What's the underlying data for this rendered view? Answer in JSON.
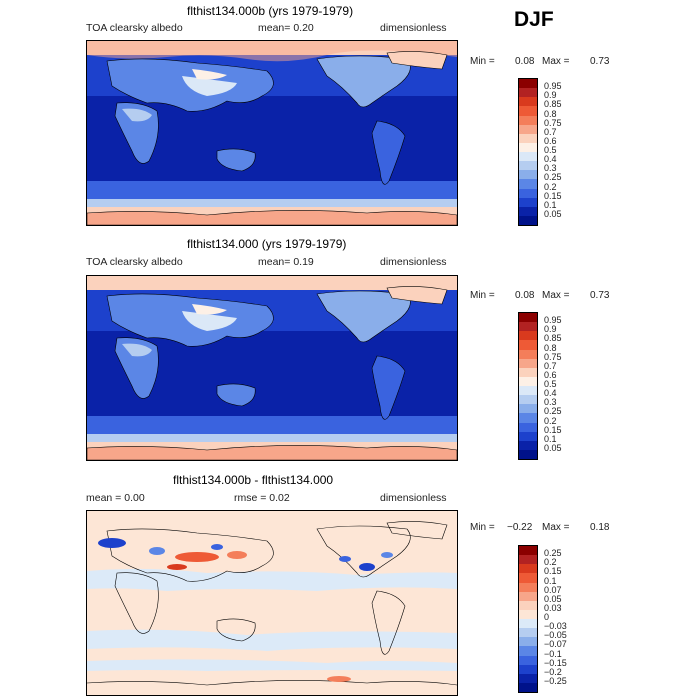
{
  "season": "DJF",
  "panels": [
    {
      "title": "flthist134.000b (yrs 1979-1979)",
      "left_label": "TOA clearsky albedo",
      "mean_text": "mean=   0.20",
      "units": "dimensionless",
      "min_label": "Min =",
      "min_value": "0.08",
      "max_label": "Max =",
      "max_value": "0.73",
      "colorbar_labels": [
        "0.95",
        "0.9",
        "0.85",
        "0.8",
        "0.75",
        "0.7",
        "0.6",
        "0.5",
        "0.4",
        "0.3",
        "0.25",
        "0.2",
        "0.15",
        "0.1",
        "0.05"
      ]
    },
    {
      "title": "flthist134.000 (yrs 1979-1979)",
      "left_label": "TOA clearsky albedo",
      "mean_text": "mean=   0.19",
      "units": "dimensionless",
      "min_label": "Min =",
      "min_value": "0.08",
      "max_label": "Max =",
      "max_value": "0.73",
      "colorbar_labels": [
        "0.95",
        "0.9",
        "0.85",
        "0.8",
        "0.75",
        "0.7",
        "0.6",
        "0.5",
        "0.4",
        "0.3",
        "0.25",
        "0.2",
        "0.15",
        "0.1",
        "0.05"
      ]
    },
    {
      "title": "flthist134.000b - flthist134.000",
      "left_label": "mean =    0.00",
      "mean_text": "rmse =   0.02",
      "units": "dimensionless",
      "min_label": "Min =",
      "min_value": "−0.22",
      "max_label": "Max =",
      "max_value": "0.18",
      "colorbar_labels": [
        "0.25",
        "0.2",
        "0.15",
        "0.1",
        "0.07",
        "0.05",
        "0.03",
        "0",
        "−0.03",
        "−0.05",
        "−0.07",
        "−0.1",
        "−0.15",
        "−0.2",
        "−0.25"
      ]
    }
  ],
  "colors": {
    "albedo_scale": [
      "#8b0000",
      "#b22222",
      "#d93a1e",
      "#ee5a36",
      "#f47e5a",
      "#f7a68a",
      "#fbd2bd",
      "#fdf0e6",
      "#dbe8f7",
      "#b5cdf0",
      "#8aaeea",
      "#5b86e6",
      "#3a63df",
      "#1d41cc",
      "#0a22a8",
      "#00128a"
    ],
    "diff_scale": [
      "#8b0000",
      "#b22222",
      "#d93a1e",
      "#ee5a36",
      "#f47e5a",
      "#f7a68a",
      "#fbd2bd",
      "#fde6d6",
      "#dceaf8",
      "#b5cdf0",
      "#8aaeea",
      "#5b86e6",
      "#3a63df",
      "#1d41cc",
      "#0a22a8",
      "#00128a"
    ]
  }
}
